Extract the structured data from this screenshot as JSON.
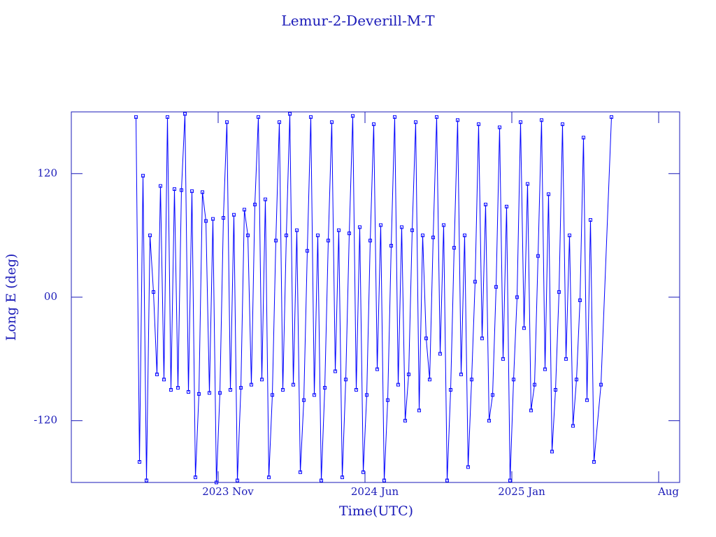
{
  "chart_data": {
    "type": "line",
    "title": "Lemur-2-Deverill-M-T",
    "x_label": "Time(UTC)",
    "y_label": "Long E (deg)",
    "color": "#0000ff",
    "markers": true,
    "xlim": [
      "2023-04",
      "2025-09"
    ],
    "xticks": [
      {
        "value": "2023-11",
        "label": "2023 Nov"
      },
      {
        "value": "2024-06",
        "label": "2024 Jun"
      },
      {
        "value": "2025-01",
        "label": "2025 Jan"
      },
      {
        "value": "2025-08",
        "label": "Aug"
      }
    ],
    "ylim": [
      -180,
      180
    ],
    "yticks": [
      -120,
      {
        "value": 0,
        "label": "00"
      },
      120
    ],
    "x": [
      "2023-07",
      "2023-07",
      "2023-07",
      "2023-07",
      "2023-07",
      "2023-07",
      "2023-08",
      "2023-08",
      "2023-08",
      "2023-08",
      "2023-08",
      "2023-08",
      "2023-09",
      "2023-09",
      "2023-09",
      "2023-09",
      "2023-09",
      "2023-09",
      "2023-10",
      "2023-10",
      "2023-10",
      "2023-10",
      "2023-10",
      "2023-10",
      "2023-11",
      "2023-11",
      "2023-11",
      "2023-11",
      "2023-11",
      "2023-11",
      "2023-12",
      "2023-12",
      "2023-12",
      "2023-12",
      "2023-12",
      "2023-12",
      "2024-01",
      "2024-01",
      "2024-01",
      "2024-01",
      "2024-01",
      "2024-01",
      "2024-02",
      "2024-02",
      "2024-02",
      "2024-02",
      "2024-02",
      "2024-02",
      "2024-03",
      "2024-03",
      "2024-03",
      "2024-03",
      "2024-03",
      "2024-03",
      "2024-04",
      "2024-04",
      "2024-04",
      "2024-04",
      "2024-04",
      "2024-04",
      "2024-05",
      "2024-05",
      "2024-05",
      "2024-05",
      "2024-05",
      "2024-05",
      "2024-06",
      "2024-06",
      "2024-06",
      "2024-06",
      "2024-06",
      "2024-06",
      "2024-07",
      "2024-07",
      "2024-07",
      "2024-07",
      "2024-07",
      "2024-07",
      "2024-08",
      "2024-08",
      "2024-08",
      "2024-08",
      "2024-08",
      "2024-08",
      "2024-09",
      "2024-09",
      "2024-09",
      "2024-09",
      "2024-09",
      "2024-09",
      "2024-10",
      "2024-10",
      "2024-10",
      "2024-10",
      "2024-10",
      "2024-10",
      "2024-11",
      "2024-11",
      "2024-11",
      "2024-11",
      "2024-11",
      "2024-11",
      "2024-12",
      "2024-12",
      "2024-12",
      "2024-12",
      "2024-12",
      "2024-12",
      "2025-01",
      "2025-01",
      "2025-01",
      "2025-01",
      "2025-01",
      "2025-01",
      "2025-02",
      "2025-02",
      "2025-02",
      "2025-02",
      "2025-02",
      "2025-02",
      "2025-03",
      "2025-03",
      "2025-03",
      "2025-03",
      "2025-03",
      "2025-03",
      "2025-04",
      "2025-04",
      "2025-04",
      "2025-04",
      "2025-04",
      "2025-04",
      "2025-05",
      "2025-05"
    ],
    "values": [
      175,
      -160,
      118,
      -178,
      60,
      5,
      -75,
      108,
      -80,
      175,
      -90,
      105,
      -88,
      104,
      178,
      -92,
      103,
      -175,
      -94,
      102,
      74,
      -93,
      76,
      -180,
      -93,
      77,
      170,
      -90,
      80,
      -178,
      -88,
      85,
      60,
      -85,
      90,
      175,
      -80,
      95,
      -175,
      -95,
      55,
      170,
      -90,
      60,
      178,
      -85,
      65,
      -170,
      -100,
      45,
      175,
      -95,
      60,
      -178,
      -88,
      55,
      170,
      -72,
      65,
      -175,
      -80,
      62,
      176,
      -90,
      68,
      -170,
      -95,
      55,
      168,
      -70,
      70,
      -178,
      -100,
      50,
      175,
      -85,
      68,
      -120,
      -75,
      65,
      170,
      -110,
      60,
      -40,
      -80,
      58,
      175,
      -55,
      70,
      -178,
      -90,
      48,
      172,
      -75,
      60,
      -165,
      -80,
      15,
      168,
      -40,
      90,
      -120,
      -95,
      10,
      165,
      -60,
      88,
      -178,
      -80,
      0,
      170,
      -30,
      110,
      -110,
      -85,
      40,
      172,
      -70,
      100,
      -150,
      -90,
      5,
      168,
      -60,
      60,
      -125,
      -80,
      -3,
      155,
      -100,
      75,
      -160,
      -85,
      175
    ]
  }
}
